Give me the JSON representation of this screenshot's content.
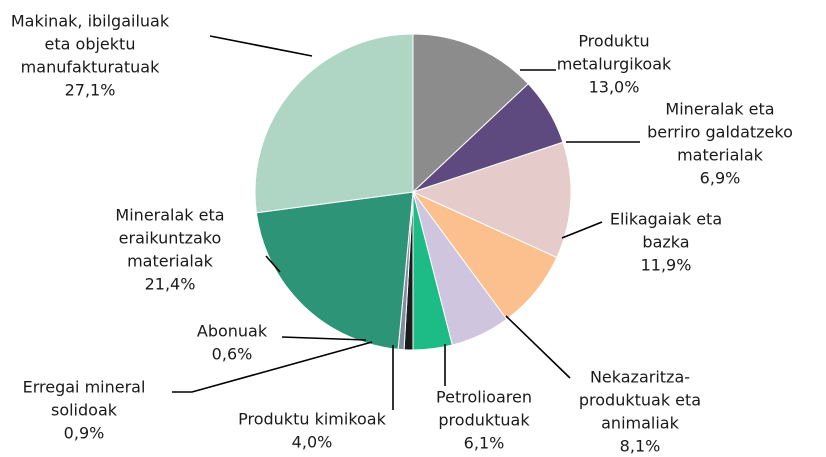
{
  "chart_data": {
    "type": "pie",
    "categories": [
      [
        "Produktu",
        "metalurgikoak"
      ],
      [
        "Mineralak eta",
        "berriro galdatzeko",
        "materialak"
      ],
      [
        "Elikagaiak eta",
        "bazka"
      ],
      [
        "Nekazaritza-",
        "produktuak eta",
        "animaliak"
      ],
      [
        "Petrolioaren",
        "produktuak"
      ],
      [
        "Produktu kimikoak"
      ],
      [
        "Erregai mineral",
        "solidoak"
      ],
      [
        "Abonuak"
      ],
      [
        "Mineralak eta",
        "eraikuntzako",
        "materialak"
      ],
      [
        "Makinak, ibilgailuak",
        "eta objektu",
        "manufakturatuak"
      ]
    ],
    "values": [
      13.0,
      6.9,
      11.9,
      8.1,
      6.1,
      4.0,
      0.9,
      0.6,
      21.4,
      27.1
    ],
    "value_labels": [
      "13,0%",
      "6,9%",
      "11,9%",
      "8,1%",
      "6,1%",
      "4,0%",
      "0,9%",
      "0,6%",
      "21,4%",
      "27,1%"
    ],
    "colors": [
      "#8c8c8c",
      "#5e4a7e",
      "#e6cbcb",
      "#fbc08e",
      "#cfc5df",
      "#1dbb86",
      "#1a1a1a",
      "#7f8fa0",
      "#2e9478",
      "#afd5c5"
    ]
  }
}
